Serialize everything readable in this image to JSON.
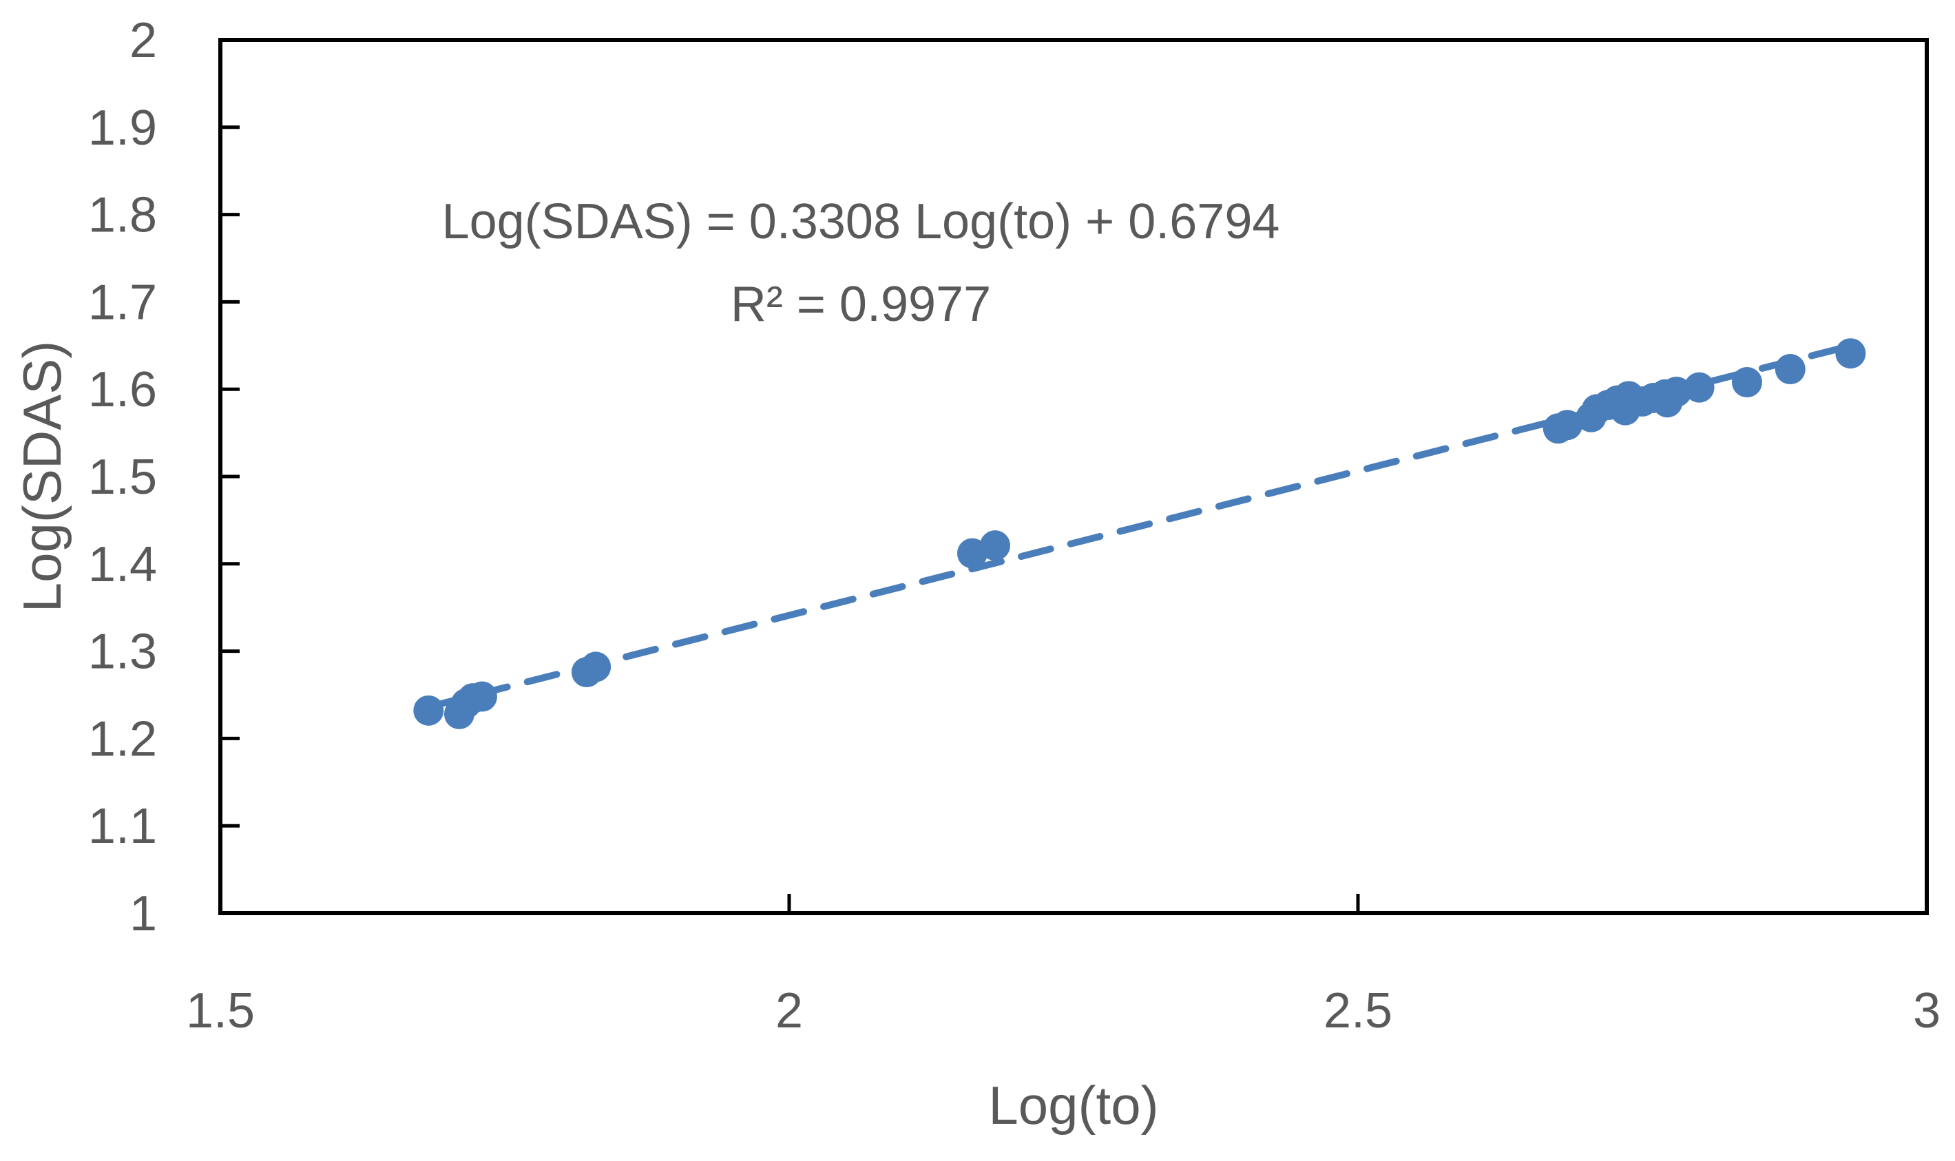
{
  "chart_data": {
    "type": "scatter",
    "title": "",
    "xlabel": "Log(to)",
    "ylabel": "Log(SDAS)",
    "xlim": [
      1.5,
      3
    ],
    "ylim": [
      1,
      2
    ],
    "x_ticks": [
      1.5,
      2,
      2.5,
      3
    ],
    "x_tick_labels": [
      "1.5",
      "2",
      "2.5",
      "3"
    ],
    "y_ticks": [
      1,
      1.1,
      1.2,
      1.3,
      1.4,
      1.5,
      1.6,
      1.7,
      1.8,
      1.9,
      2
    ],
    "y_tick_labels": [
      "1",
      "1.1",
      "1.2",
      "1.3",
      "1.4",
      "1.5",
      "1.6",
      "1.7",
      "1.8",
      "1.9",
      "2"
    ],
    "grid": false,
    "legend": "none",
    "series": [
      {
        "marker": "circle",
        "color": "#4a7ebb",
        "points": [
          [
            1.683,
            1.232
          ],
          [
            1.71,
            1.228
          ],
          [
            1.716,
            1.24
          ],
          [
            1.722,
            1.246
          ],
          [
            1.73,
            1.248
          ],
          [
            1.822,
            1.276
          ],
          [
            1.83,
            1.282
          ],
          [
            2.161,
            1.412
          ],
          [
            2.181,
            1.421
          ],
          [
            2.676,
            1.555
          ],
          [
            2.684,
            1.559
          ],
          [
            2.705,
            1.568
          ],
          [
            2.71,
            1.577
          ],
          [
            2.72,
            1.582
          ],
          [
            2.728,
            1.587
          ],
          [
            2.735,
            1.576
          ],
          [
            2.738,
            1.592
          ],
          [
            2.75,
            1.586
          ],
          [
            2.76,
            1.59
          ],
          [
            2.77,
            1.594
          ],
          [
            2.772,
            1.585
          ],
          [
            2.78,
            1.597
          ],
          [
            2.8,
            1.602
          ],
          [
            2.842,
            1.608
          ],
          [
            2.88,
            1.623
          ],
          [
            2.933,
            1.641
          ]
        ]
      }
    ],
    "trendline": {
      "style": "dashed",
      "color": "#4a7ebb",
      "slope": 0.3308,
      "intercept": 0.6794,
      "x_range": [
        1.683,
        2.933
      ]
    },
    "annotations": {
      "equation": "Log(SDAS) = 0.3308 Log(to) + 0.6794",
      "r_squared": "R² = 0.9977"
    }
  }
}
